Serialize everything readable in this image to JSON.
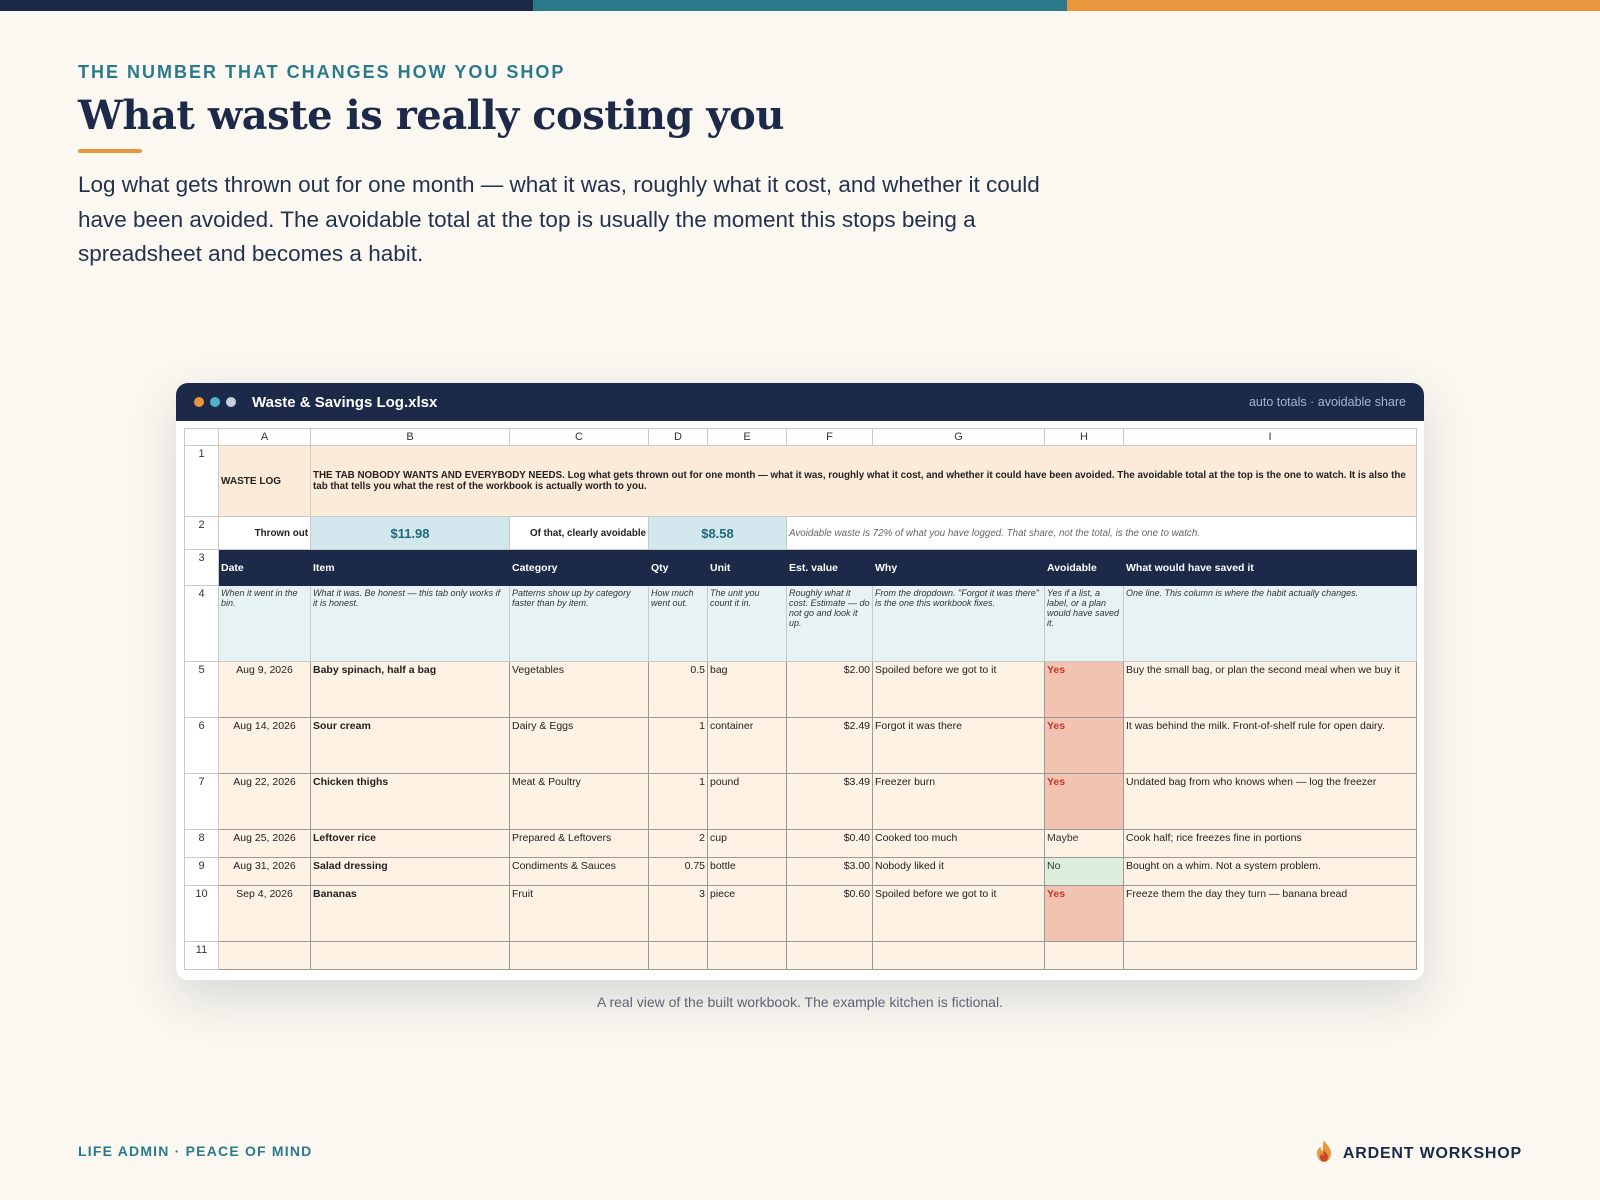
{
  "colors": {
    "navy": "#1c2948",
    "teal": "#2a7a8c",
    "orange": "#e9973d"
  },
  "header": {
    "eyebrow": "THE NUMBER THAT CHANGES HOW YOU SHOP",
    "title": "What waste is really costing you",
    "intro": "Log what gets thrown out for one month — what it was, roughly what it cost, and whether it could have been avoided. The avoidable total at the top is usually the moment this stops being a spreadsheet and becomes a habit."
  },
  "window": {
    "title": "Waste & Savings Log.xlsx",
    "meta": "auto totals · avoidable share"
  },
  "sheet": {
    "columns": [
      "A",
      "B",
      "C",
      "D",
      "E",
      "F",
      "G",
      "H",
      "I"
    ],
    "row_numbers": [
      "1",
      "2",
      "3",
      "4",
      "5",
      "6",
      "7",
      "8",
      "9",
      "10",
      "11"
    ],
    "row1": {
      "tab_name": "WASTE LOG",
      "description": "THE TAB NOBODY WANTS AND EVERYBODY NEEDS. Log what gets thrown out for one month — what it was, roughly what it cost, and whether it could have been avoided. The avoidable total at the top is the one to watch. It is also the tab that tells you what the rest of the workbook is actually worth to you."
    },
    "row2": {
      "thrown_label": "Thrown out",
      "thrown_value": "$11.98",
      "avoidable_label": "Of that, clearly avoidable",
      "avoidable_value": "$8.58",
      "note": "Avoidable waste is 72% of what you have logged. That share, not the total, is the one to watch."
    },
    "headers": [
      "Date",
      "Item",
      "Category",
      "Qty",
      "Unit",
      "Est. value",
      "Why",
      "Avoidable",
      "What would have saved it"
    ],
    "hints": [
      "When it went in the bin.",
      "What it was. Be honest — this tab only works if it is honest.",
      "Patterns show up by category faster than by item.",
      "How much went out.",
      "The unit you count it in.",
      "Roughly what it cost. Estimate — do not go and look it up.",
      "From the dropdown. \"Forgot it was there\" is the one this workbook fixes.",
      "Yes if a list, a label, or a plan would have saved it.",
      "One line. This column is where the habit actually changes."
    ],
    "rows": [
      {
        "date": "Aug 9, 2026",
        "item": "Baby spinach, half a bag",
        "category": "Vegetables",
        "qty": "0.5",
        "unit": "bag",
        "value": "$2.00",
        "why": "Spoiled before we got to it",
        "avoidable": "Yes",
        "saved": "Buy the small bag, or plan the second meal when we buy it"
      },
      {
        "date": "Aug 14, 2026",
        "item": "Sour cream",
        "category": "Dairy & Eggs",
        "qty": "1",
        "unit": "container",
        "value": "$2.49",
        "why": "Forgot it was there",
        "avoidable": "Yes",
        "saved": "It was behind the milk. Front-of-shelf rule for open dairy."
      },
      {
        "date": "Aug 22, 2026",
        "item": "Chicken thighs",
        "category": "Meat & Poultry",
        "qty": "1",
        "unit": "pound",
        "value": "$3.49",
        "why": "Freezer burn",
        "avoidable": "Yes",
        "saved": "Undated bag from who knows when — log the freezer"
      },
      {
        "date": "Aug 25, 2026",
        "item": "Leftover rice",
        "category": "Prepared & Leftovers",
        "qty": "2",
        "unit": "cup",
        "value": "$0.40",
        "why": "Cooked too much",
        "avoidable": "Maybe",
        "saved": "Cook half; rice freezes fine in portions"
      },
      {
        "date": "Aug 31, 2026",
        "item": "Salad dressing",
        "category": "Condiments & Sauces",
        "qty": "0.75",
        "unit": "bottle",
        "value": "$3.00",
        "why": "Nobody liked it",
        "avoidable": "No",
        "saved": "Bought on a whim. Not a system problem."
      },
      {
        "date": "Sep 4, 2026",
        "item": "Bananas",
        "category": "Fruit",
        "qty": "3",
        "unit": "piece",
        "value": "$0.60",
        "why": "Spoiled before we got to it",
        "avoidable": "Yes",
        "saved": "Freeze them the day they turn — banana bread"
      }
    ]
  },
  "caption": "A real view of the built workbook. The example kitchen is fictional.",
  "footer": {
    "tagline": "LIFE ADMIN · PEACE OF MIND",
    "brand": "ARDENT WORKSHOP",
    "brand_icon": "flame-icon"
  }
}
